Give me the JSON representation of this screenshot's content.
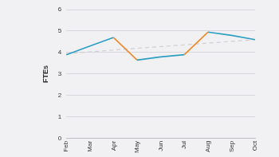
{
  "chart_data": {
    "type": "line",
    "y_label": "FTEs",
    "categories": [
      "Feb",
      "Mar",
      "Apr",
      "May",
      "Jun",
      "Jul",
      "Aug",
      "Sep",
      "Oct"
    ],
    "series": [
      {
        "values": [
          3.9,
          4.3,
          4.7,
          3.65,
          3.8,
          3.9,
          4.95,
          4.8,
          4.6
        ],
        "color": "#2a9fc4",
        "colors": [
          "#2a9fc4",
          "#2a9fc4",
          "#e8892a",
          "#2a9fc4",
          "#2a9fc4",
          "#e8892a",
          "#2a9fc4",
          "#2a9fc4"
        ],
        "line_style": "solid"
      },
      {
        "values": [
          3.95,
          4.03,
          4.12,
          4.2,
          4.28,
          4.36,
          4.44,
          4.52,
          4.6
        ],
        "color": "#cfcfd4",
        "line_style": "dashed"
      }
    ],
    "ylim": [
      0,
      6
    ],
    "yticks": [
      0,
      1,
      2,
      3,
      4,
      5,
      6
    ],
    "grid": true
  }
}
